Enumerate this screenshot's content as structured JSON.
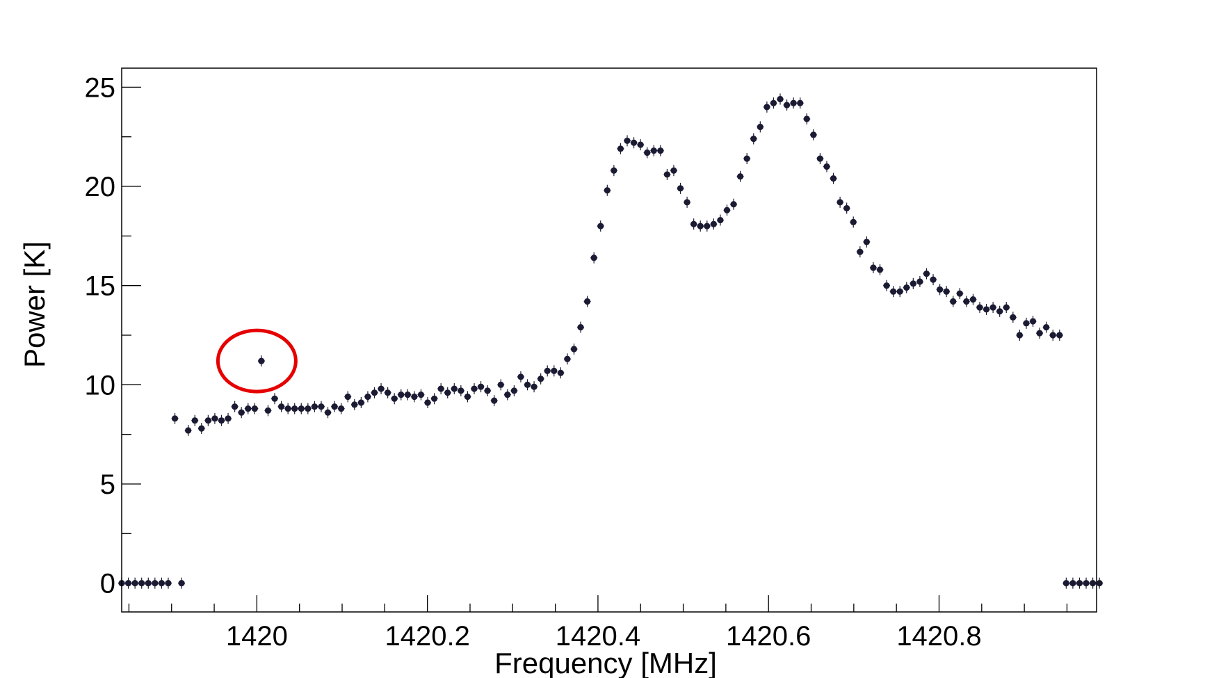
{
  "chart_data": {
    "type": "scatter",
    "title": "",
    "xlabel": "Frequency [MHz]",
    "ylabel": "Power [K]",
    "xlim": [
      1419.8415,
      1420.9847
    ],
    "ylim": [
      -1.45,
      25.96
    ],
    "grid": false,
    "xticks": [
      {
        "value": 1420.0,
        "label": "1420"
      },
      {
        "value": 1420.2,
        "label": "1420.2"
      },
      {
        "value": 1420.4,
        "label": "1420.4"
      },
      {
        "value": 1420.6,
        "label": "1420.6"
      },
      {
        "value": 1420.8,
        "label": "1420.8"
      }
    ],
    "yticks": [
      {
        "value": 0,
        "label": "0"
      },
      {
        "value": 5,
        "label": "5"
      },
      {
        "value": 10,
        "label": "10"
      },
      {
        "value": 15,
        "label": "15"
      },
      {
        "value": 20,
        "label": "20"
      },
      {
        "value": 25,
        "label": "25"
      }
    ],
    "marker_color": "#1a1a33",
    "highlight_color": "#e60000",
    "highlight": {
      "x": 1420.0,
      "y": 11.2,
      "annotation": "red circle around outlier"
    },
    "series": [
      {
        "values_start_x": 1419.8415,
        "x_step": 0.0078,
        "y": [
          0,
          0,
          0,
          0,
          0,
          0,
          0,
          0,
          8.3,
          0,
          7.7,
          8.2,
          7.8,
          8.2,
          8.3,
          8.2,
          8.3,
          8.9,
          8.6,
          8.8,
          8.8,
          11.2,
          8.7,
          9.3,
          8.9,
          8.8,
          8.8,
          8.8,
          8.8,
          8.9,
          8.9,
          8.6,
          8.9,
          8.8,
          9.4,
          9.0,
          9.1,
          9.4,
          9.6,
          9.8,
          9.6,
          9.3,
          9.5,
          9.5,
          9.4,
          9.5,
          9.1,
          9.3,
          9.8,
          9.6,
          9.8,
          9.7,
          9.4,
          9.8,
          9.9,
          9.7,
          9.2,
          10.0,
          9.5,
          9.7,
          10.4,
          10.0,
          9.9,
          10.3,
          10.7,
          10.7,
          10.6,
          11.3,
          11.8,
          12.9,
          14.2,
          16.4,
          18.0,
          19.8,
          20.8,
          21.9,
          22.3,
          22.2,
          22.1,
          21.7,
          21.8,
          21.8,
          20.6,
          20.8,
          19.9,
          19.2,
          18.1,
          18.0,
          18.0,
          18.1,
          18.3,
          18.8,
          19.1,
          20.5,
          21.4,
          22.4,
          23.0,
          24.0,
          24.2,
          24.4,
          24.1,
          24.2,
          24.2,
          23.4,
          22.6,
          21.4,
          21.0,
          20.4,
          19.2,
          18.9,
          18.2,
          16.7,
          17.2,
          15.9,
          15.8,
          15.0,
          14.7,
          14.7,
          14.9,
          15.1,
          15.2,
          15.6,
          15.3,
          14.8,
          14.7,
          14.2,
          14.6,
          14.2,
          14.3,
          13.9,
          13.8,
          13.9,
          13.7,
          13.9,
          13.4,
          12.5,
          13.1,
          13.2,
          12.6,
          12.9,
          12.5,
          12.5,
          0,
          0,
          0,
          0,
          0,
          0
        ]
      }
    ]
  }
}
